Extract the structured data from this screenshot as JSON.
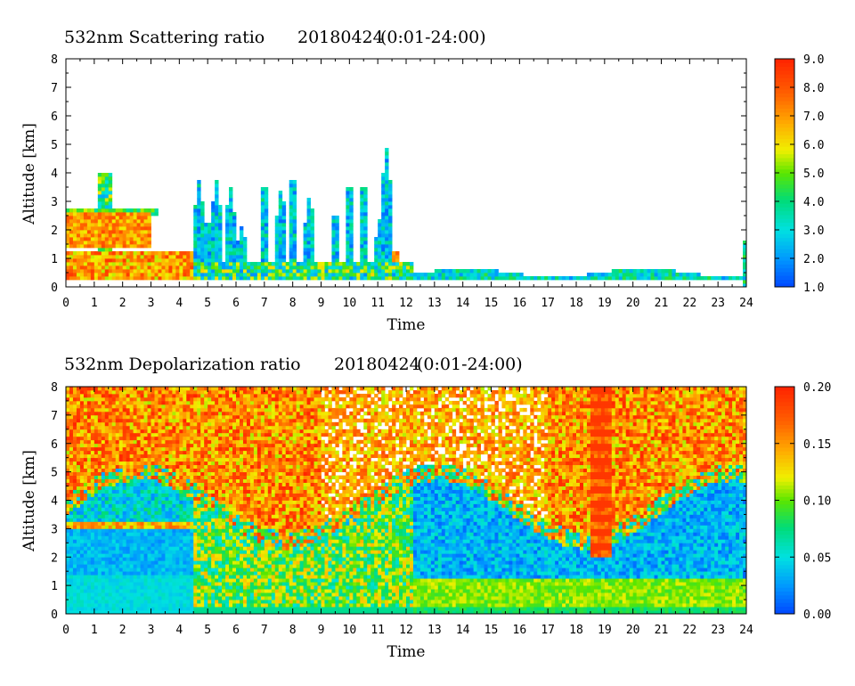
{
  "chart_data": [
    {
      "type": "heatmap",
      "title": "532nm Scattering ratio",
      "date": "20180424",
      "time_range": "(0:01-24:00)",
      "xlabel": "Time",
      "ylabel": "Altitude [km]",
      "xlim": [
        0,
        24
      ],
      "ylim": [
        0,
        8
      ],
      "x_ticks": [
        "0",
        "1",
        "2",
        "3",
        "4",
        "5",
        "6",
        "7",
        "8",
        "9",
        "10",
        "11",
        "12",
        "13",
        "14",
        "15",
        "16",
        "17",
        "18",
        "19",
        "20",
        "21",
        "22",
        "23",
        "24"
      ],
      "y_ticks": [
        "0",
        "1",
        "2",
        "3",
        "4",
        "5",
        "6",
        "7",
        "8"
      ],
      "colorbar": {
        "min": 1.0,
        "max": 9.0,
        "ticks": [
          "1.0",
          "2.0",
          "3.0",
          "4.0",
          "5.0",
          "6.0",
          "7.0",
          "8.0",
          "9.0"
        ]
      },
      "features": [
        {
          "kind": "boundary_layer",
          "t": [
            0,
            4.5
          ],
          "alt_low": 0.3,
          "alt_high": 1.4,
          "value": 8.0
        },
        {
          "kind": "cloud_layer",
          "t": [
            0,
            3.0
          ],
          "alt_low": 1.4,
          "alt_high": 2.8,
          "value": 6.0
        },
        {
          "kind": "convective_plumes",
          "t": [
            4.5,
            12.2
          ],
          "alt_low": 0.3,
          "alt_high": 5.0,
          "value": 3.0
        },
        {
          "kind": "thin_layer",
          "t": [
            12.2,
            24
          ],
          "alt_low": 0.3,
          "alt_high": 0.5,
          "value": 2.5
        }
      ]
    },
    {
      "type": "heatmap",
      "title": "532nm Depolarization ratio",
      "date": "20180424",
      "time_range": "(0:01-24:00)",
      "xlabel": "Time",
      "ylabel": "Altitude [km]",
      "xlim": [
        0,
        24
      ],
      "ylim": [
        0,
        8
      ],
      "x_ticks": [
        "0",
        "1",
        "2",
        "3",
        "4",
        "5",
        "6",
        "7",
        "8",
        "9",
        "10",
        "11",
        "12",
        "13",
        "14",
        "15",
        "16",
        "17",
        "18",
        "19",
        "20",
        "21",
        "22",
        "23",
        "24"
      ],
      "y_ticks": [
        "0",
        "1",
        "2",
        "3",
        "4",
        "5",
        "6",
        "7",
        "8"
      ],
      "colorbar": {
        "min": 0.0,
        "max": 0.2,
        "ticks": [
          "0.00",
          "0.05",
          "0.10",
          "0.15",
          "0.20"
        ]
      },
      "features": [
        {
          "kind": "noise_high_altitude",
          "alt_low": 4.5,
          "alt_high": 8.0,
          "value": 0.18
        },
        {
          "kind": "low_depol_layer",
          "t": [
            0,
            4.5
          ],
          "alt_low": 0.1,
          "alt_high": 3.0,
          "value": 0.04
        },
        {
          "kind": "dust_plumes",
          "t": [
            4.5,
            12.2
          ],
          "alt_low": 0.1,
          "alt_high": 4.0,
          "value": 0.1
        },
        {
          "kind": "boundary_layer",
          "t": [
            12.5,
            24
          ],
          "alt_low": 0.2,
          "alt_high": 1.2,
          "value": 0.1
        },
        {
          "kind": "striped_column",
          "t": [
            18.5,
            19.3
          ],
          "alt_low": 2.0,
          "alt_high": 8.0,
          "value": 0.2
        }
      ]
    }
  ]
}
